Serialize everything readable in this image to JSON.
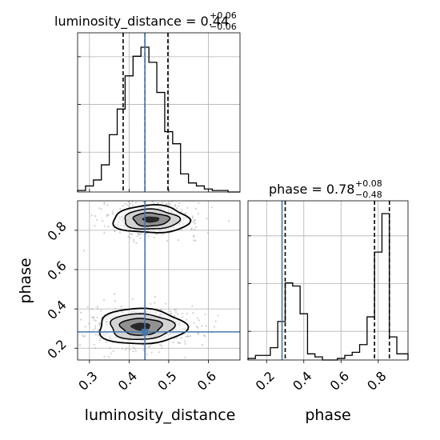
{
  "chart_data": [
    {
      "panel": "top-left",
      "type": "histogram",
      "parameter": "luminosity_distance",
      "title": {
        "label": "luminosity_distance = 0.44",
        "plus": "+0.06",
        "minus": "−0.06"
      },
      "xlim": [
        0.27,
        0.68
      ],
      "bin_edges": [
        0.27,
        0.29,
        0.31,
        0.33,
        0.35,
        0.37,
        0.39,
        0.41,
        0.43,
        0.45,
        0.47,
        0.49,
        0.51,
        0.53,
        0.55,
        0.57,
        0.59,
        0.61,
        0.63,
        0.65,
        0.68
      ],
      "counts": [
        0.01,
        0.04,
        0.08,
        0.18,
        0.38,
        0.55,
        0.77,
        0.9,
        0.96,
        0.86,
        0.66,
        0.4,
        0.32,
        0.12,
        0.06,
        0.04,
        0.02,
        0.01,
        0.01,
        0.0
      ],
      "quantiles": [
        0.385,
        0.44,
        0.498
      ],
      "truth": 0.44
    },
    {
      "panel": "bottom-left",
      "type": "2d-density",
      "x_parameter": "luminosity_distance",
      "y_parameter": "phase",
      "xlim": [
        0.27,
        0.68
      ],
      "ylim": [
        0.14,
        0.95
      ],
      "clusters": [
        {
          "center": [
            0.455,
            0.855
          ],
          "sx": 0.048,
          "sy": 0.035
        },
        {
          "center": [
            0.43,
            0.31
          ],
          "sx": 0.055,
          "sy": 0.045
        }
      ],
      "truth": [
        0.44,
        0.283
      ]
    },
    {
      "panel": "bottom-right",
      "type": "histogram",
      "parameter": "phase",
      "title": {
        "label": "phase = 0.78",
        "plus": "+0.08",
        "minus": "−0.48"
      },
      "xlim": [
        0.1,
        0.96
      ],
      "bin_edges": [
        0.1,
        0.14,
        0.18,
        0.22,
        0.26,
        0.3,
        0.34,
        0.38,
        0.42,
        0.46,
        0.5,
        0.54,
        0.58,
        0.62,
        0.66,
        0.7,
        0.74,
        0.78,
        0.82,
        0.86,
        0.9,
        0.96
      ],
      "counts": [
        0.01,
        0.03,
        0.03,
        0.08,
        0.25,
        0.5,
        0.48,
        0.3,
        0.04,
        0.02,
        0.0,
        0.0,
        0.01,
        0.03,
        0.05,
        0.1,
        0.28,
        0.7,
        0.95,
        0.15,
        0.04
      ],
      "quantiles": [
        0.3,
        0.78,
        0.86
      ],
      "truth": 0.283
    }
  ],
  "axes": {
    "x_label_left": "luminosity_distance",
    "x_label_right": "phase",
    "y_label": "phase",
    "x_ticks_left": [
      "0.3",
      "0.4",
      "0.5",
      "0.6"
    ],
    "x_ticks_right": [
      "0.2",
      "0.4",
      "0.6",
      "0.8"
    ],
    "y_ticks": [
      "0.2",
      "0.4",
      "0.6",
      "0.8"
    ]
  },
  "colors": {
    "truth": "#4477aa",
    "lines": "#000000",
    "grid": "#b0b0b0"
  }
}
